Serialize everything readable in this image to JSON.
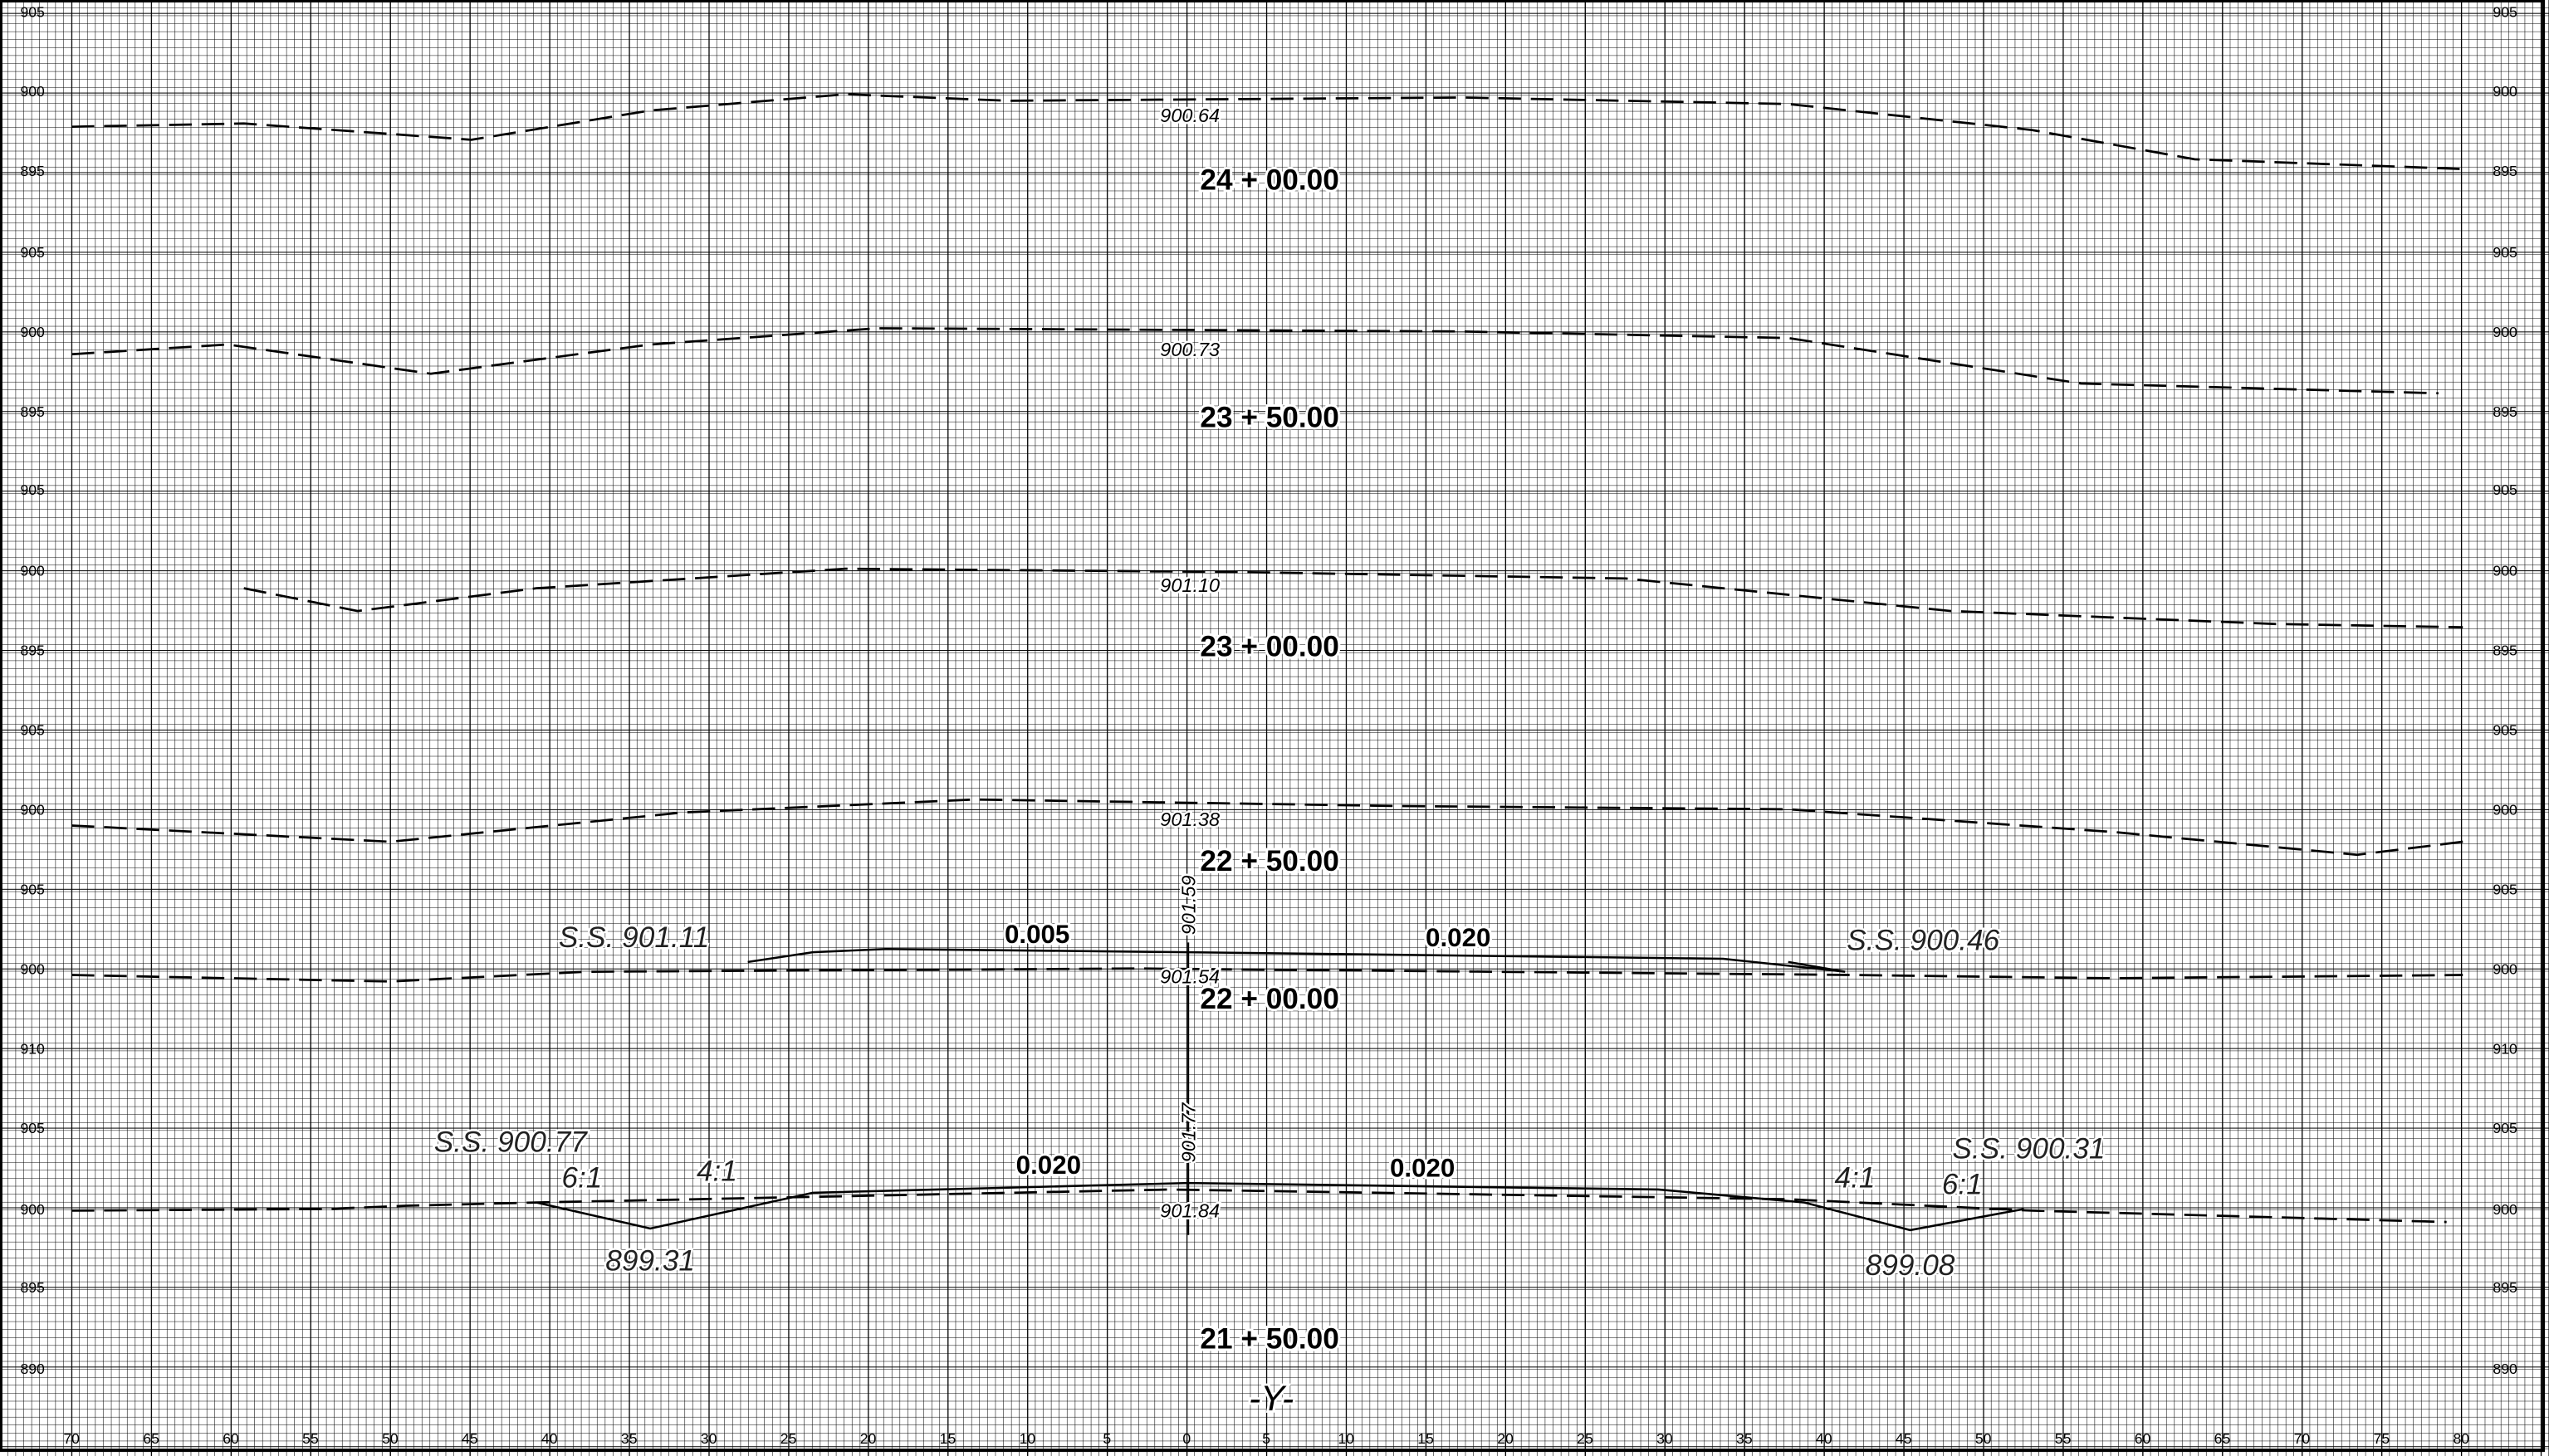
{
  "sheet": {
    "title": "-Y-",
    "left_elevations": [
      "905",
      "900",
      "895",
      "905",
      "900",
      "895",
      "905",
      "900",
      "895",
      "905",
      "900",
      "905",
      "900",
      "910",
      "905",
      "900",
      "895",
      "890"
    ],
    "right_elevations": [
      "905",
      "900",
      "895",
      "905",
      "900",
      "895",
      "905",
      "900",
      "895",
      "905",
      "900",
      "905",
      "900",
      "910",
      "905",
      "900",
      "895",
      "890"
    ],
    "offsets": [
      "70",
      "65",
      "60",
      "55",
      "50",
      "45",
      "40",
      "35",
      "30",
      "25",
      "20",
      "15",
      "10",
      "5",
      "0",
      "5",
      "10",
      "15",
      "20",
      "25",
      "30",
      "35",
      "40",
      "45",
      "50",
      "55",
      "60",
      "65",
      "70",
      "75",
      "80"
    ],
    "sections": [
      {
        "station": "24 + 00.00",
        "elevation": "900.64"
      },
      {
        "station": "23 + 50.00",
        "elevation": "900.73"
      },
      {
        "station": "23 + 00.00",
        "elevation": "901.10"
      },
      {
        "station": "22 + 50.00",
        "elevation": "901.38"
      },
      {
        "station": "22 + 00.00",
        "elevation": "901.54",
        "grade_elevation": "901.59",
        "left_shoulder": "S.S. 901.11",
        "left_slope": "0.005",
        "right_slope": "0.020",
        "right_shoulder": "S.S. 900.46"
      },
      {
        "station": "21 + 50.00",
        "elevation": "901.84",
        "grade_elevation": "901.77",
        "left_shoulder": "S.S. 900.77",
        "left_slope": "0.020",
        "right_slope": "0.020",
        "right_shoulder": "S.S. 900.31",
        "left_ditch": "899.31",
        "right_ditch": "899.08",
        "side_slopes": [
          "6:1",
          "4:1",
          "4:1",
          "6:1"
        ]
      }
    ]
  }
}
